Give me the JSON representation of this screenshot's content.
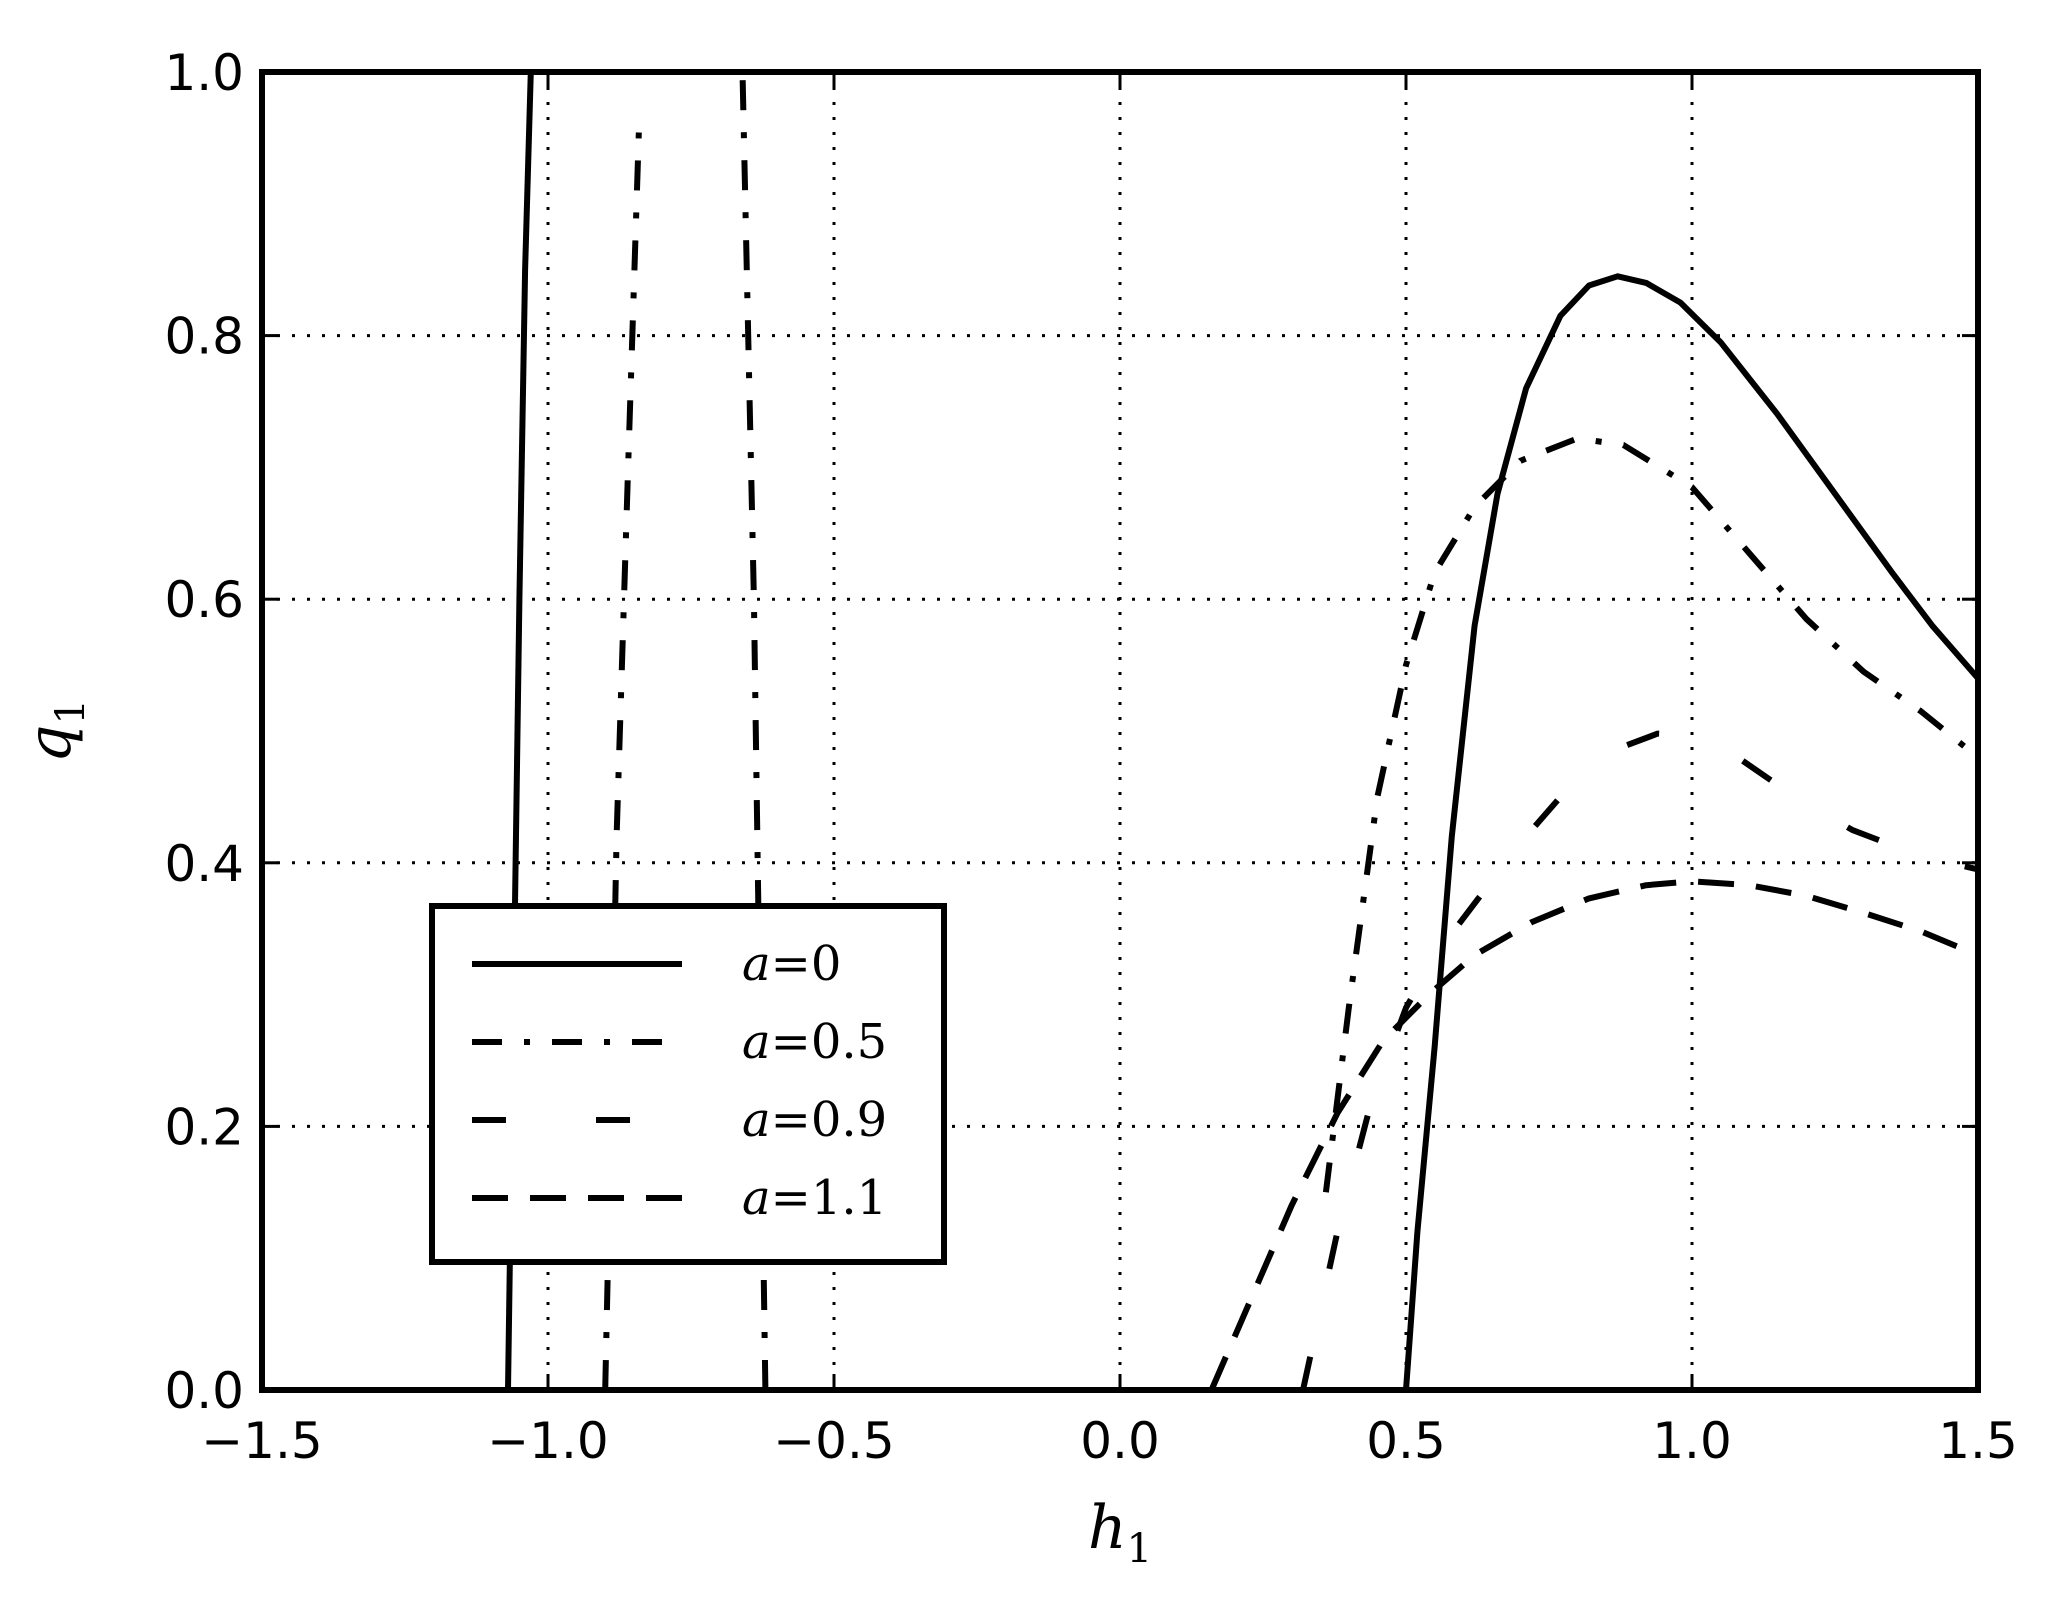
{
  "chart_data": {
    "type": "line",
    "xlabel": "h",
    "xlabel_sub": "1",
    "ylabel": "q",
    "ylabel_sub": "1",
    "xlim": [
      -1.5,
      1.5
    ],
    "ylim": [
      0.0,
      1.0
    ],
    "xticks": [
      -1.5,
      -1.0,
      -0.5,
      0.0,
      0.5,
      1.0,
      1.5
    ],
    "xtick_labels": [
      "−1.5",
      "−1.0",
      "−0.5",
      "0.0",
      "0.5",
      "1.0",
      "1.5"
    ],
    "yticks": [
      0.0,
      0.2,
      0.4,
      0.6,
      0.8,
      1.0
    ],
    "ytick_labels": [
      "0.0",
      "0.2",
      "0.4",
      "0.6",
      "0.8",
      "1.0"
    ],
    "grid": true,
    "legend_position": "lower-left",
    "colors": {
      "line": "#000000",
      "background": "#ffffff",
      "grid": "#000000"
    },
    "series": [
      {
        "name": "a=0",
        "legend_var": "a",
        "legend_value": "0",
        "style": "solid",
        "segments": [
          [
            [
              -1.07,
              0.0
            ],
            [
              -1.06,
              0.3
            ],
            [
              -1.05,
              0.6
            ],
            [
              -1.04,
              0.85
            ],
            [
              -1.03,
              1.0
            ]
          ],
          [
            [
              0.5,
              0.0
            ],
            [
              0.52,
              0.12
            ],
            [
              0.55,
              0.26
            ],
            [
              0.58,
              0.42
            ],
            [
              0.62,
              0.58
            ],
            [
              0.66,
              0.68
            ],
            [
              0.71,
              0.76
            ],
            [
              0.77,
              0.815
            ],
            [
              0.82,
              0.838
            ],
            [
              0.87,
              0.845
            ],
            [
              0.92,
              0.84
            ],
            [
              0.98,
              0.825
            ],
            [
              1.05,
              0.795
            ],
            [
              1.15,
              0.74
            ],
            [
              1.25,
              0.68
            ],
            [
              1.35,
              0.62
            ],
            [
              1.42,
              0.58
            ],
            [
              1.5,
              0.54
            ]
          ]
        ]
      },
      {
        "name": "a=0.5",
        "legend_var": "a",
        "legend_value": "0.5",
        "style": "dashdot",
        "segments": [
          [
            [
              -0.9,
              0.0
            ],
            [
              -0.89,
              0.2
            ],
            [
              -0.88,
              0.42
            ],
            [
              -0.86,
              0.7
            ],
            [
              -0.84,
              0.97
            ]
          ],
          [
            [
              -0.62,
              0.0
            ],
            [
              -0.63,
              0.3
            ],
            [
              -0.64,
              0.6
            ],
            [
              -0.65,
              0.8
            ],
            [
              -0.66,
              1.0
            ]
          ],
          [
            [
              0.36,
              0.15
            ],
            [
              0.4,
              0.29
            ],
            [
              0.45,
              0.45
            ],
            [
              0.5,
              0.55
            ],
            [
              0.55,
              0.62
            ],
            [
              0.62,
              0.67
            ],
            [
              0.7,
              0.705
            ],
            [
              0.8,
              0.722
            ],
            [
              0.88,
              0.717
            ],
            [
              1.0,
              0.685
            ],
            [
              1.1,
              0.635
            ],
            [
              1.2,
              0.585
            ],
            [
              1.3,
              0.545
            ],
            [
              1.4,
              0.515
            ],
            [
              1.5,
              0.48
            ]
          ]
        ]
      },
      {
        "name": "a=0.9",
        "legend_var": "a",
        "legend_value": "0.9",
        "style": "longdash",
        "segments": [
          [
            [
              0.32,
              0.0
            ],
            [
              0.38,
              0.12
            ],
            [
              0.44,
              0.22
            ],
            [
              0.5,
              0.29
            ],
            [
              0.56,
              0.335
            ],
            [
              0.63,
              0.375
            ],
            [
              0.7,
              0.415
            ],
            [
              0.78,
              0.455
            ],
            [
              0.86,
              0.485
            ],
            [
              0.94,
              0.498
            ],
            [
              1.0,
              0.497
            ],
            [
              1.08,
              0.48
            ],
            [
              1.18,
              0.45
            ],
            [
              1.28,
              0.425
            ],
            [
              1.4,
              0.405
            ],
            [
              1.5,
              0.395
            ]
          ]
        ]
      },
      {
        "name": "a=1.1",
        "legend_var": "a",
        "legend_value": "1.1",
        "style": "dashed",
        "segments": [
          [
            [
              0.16,
              0.0
            ],
            [
              0.22,
              0.06
            ],
            [
              0.3,
              0.14
            ],
            [
              0.38,
              0.21
            ],
            [
              0.46,
              0.265
            ],
            [
              0.54,
              0.3
            ],
            [
              0.62,
              0.33
            ],
            [
              0.72,
              0.355
            ],
            [
              0.82,
              0.373
            ],
            [
              0.92,
              0.383
            ],
            [
              1.0,
              0.386
            ],
            [
              1.1,
              0.383
            ],
            [
              1.2,
              0.375
            ],
            [
              1.3,
              0.362
            ],
            [
              1.4,
              0.348
            ],
            [
              1.5,
              0.33
            ]
          ]
        ]
      }
    ]
  }
}
